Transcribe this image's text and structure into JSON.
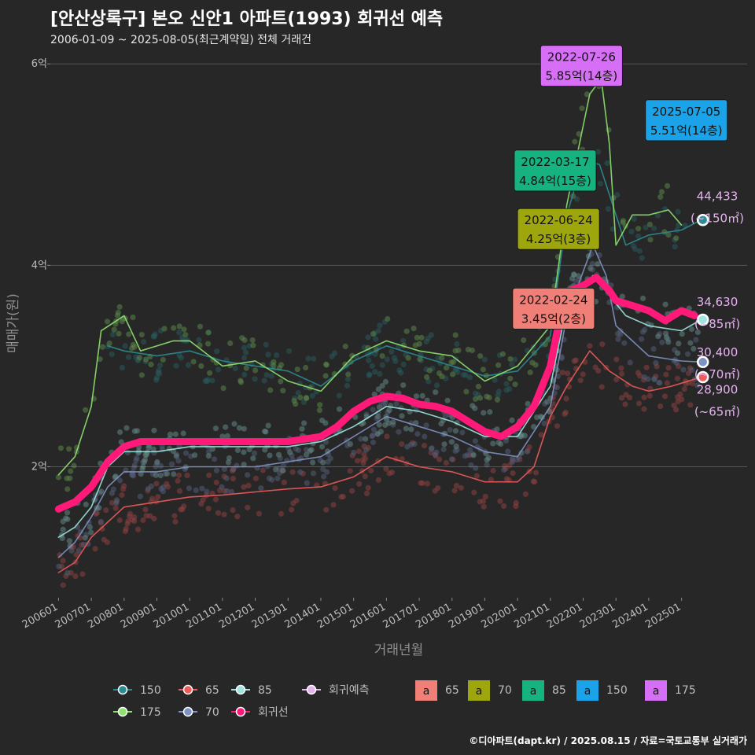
{
  "header": {
    "title": "[안산상록구] 본오 신안1 아파트(1993) 회귀선 예측",
    "subtitle": "2006-01-09 ~ 2025-08-05(최근계약일) 전체 거래건"
  },
  "footer": {
    "credit": "©디아파트(dapt.kr) / 2025.08.15 / 자료=국토교통부 실거래가"
  },
  "chart_data": {
    "type": "scatter",
    "xlabel": "거래년월",
    "ylabel": "매매가(원)",
    "x_ticks": [
      "200601",
      "200701",
      "200801",
      "200901",
      "201001",
      "201101",
      "201201",
      "201301",
      "201401",
      "201501",
      "201601",
      "201701",
      "201801",
      "201901",
      "202001",
      "202101",
      "202201",
      "202301",
      "202401",
      "202501"
    ],
    "y_ticks": [
      {
        "value": 2,
        "label": "2억"
      },
      {
        "value": 4,
        "label": "4억"
      },
      {
        "value": 6,
        "label": "6억"
      }
    ],
    "xlim": [
      2005.75,
      2027.0
    ],
    "ylim": [
      0.7,
      6.15
    ],
    "series": [
      {
        "name": "150",
        "color": "#2b8c92",
        "values": [
          [
            2007.5,
            3.2
          ],
          [
            2008,
            3.15
          ],
          [
            2009,
            3.1
          ],
          [
            2010,
            3.15
          ],
          [
            2011,
            3.05
          ],
          [
            2012,
            3.0
          ],
          [
            2013,
            2.95
          ],
          [
            2014,
            2.8
          ],
          [
            2015,
            3.05
          ],
          [
            2016,
            3.2
          ],
          [
            2017,
            3.1
          ],
          [
            2018,
            3.0
          ],
          [
            2019,
            2.9
          ],
          [
            2020,
            2.95
          ],
          [
            2021,
            3.3
          ],
          [
            2021.5,
            4.5
          ],
          [
            2022.0,
            5.05
          ],
          [
            2022.5,
            5.0
          ],
          [
            2022.9,
            4.6
          ],
          [
            2023.3,
            4.2
          ],
          [
            2024,
            4.3
          ],
          [
            2025,
            4.35
          ],
          [
            2025.6,
            4.45
          ]
        ]
      },
      {
        "name": "175",
        "color": "#8ee26e",
        "values": [
          [
            2006.0,
            1.92
          ],
          [
            2006.5,
            2.1
          ],
          [
            2007.0,
            2.6
          ],
          [
            2007.3,
            3.35
          ],
          [
            2008,
            3.5
          ],
          [
            2008.5,
            3.15
          ],
          [
            2009.5,
            3.25
          ],
          [
            2010,
            3.25
          ],
          [
            2011,
            3.0
          ],
          [
            2012,
            3.05
          ],
          [
            2013,
            2.85
          ],
          [
            2014,
            2.75
          ],
          [
            2015,
            3.1
          ],
          [
            2016,
            3.25
          ],
          [
            2017,
            3.15
          ],
          [
            2018,
            3.1
          ],
          [
            2019,
            2.85
          ],
          [
            2020,
            3.0
          ],
          [
            2021,
            3.4
          ],
          [
            2021.5,
            4.6
          ],
          [
            2022.2,
            5.7
          ],
          [
            2022.55,
            5.85
          ],
          [
            2022.8,
            5.2
          ],
          [
            2023.0,
            4.2
          ],
          [
            2023.5,
            4.5
          ],
          [
            2024.0,
            4.5
          ],
          [
            2024.6,
            4.55
          ],
          [
            2025.0,
            4.4
          ]
        ]
      },
      {
        "name": "65",
        "color": "#f05a5a",
        "values": [
          [
            2006.0,
            0.95
          ],
          [
            2006.5,
            1.05
          ],
          [
            2007.0,
            1.3
          ],
          [
            2007.5,
            1.45
          ],
          [
            2008,
            1.6
          ],
          [
            2009,
            1.65
          ],
          [
            2010,
            1.7
          ],
          [
            2011,
            1.72
          ],
          [
            2012,
            1.75
          ],
          [
            2013,
            1.78
          ],
          [
            2014,
            1.8
          ],
          [
            2015,
            1.9
          ],
          [
            2016,
            2.1
          ],
          [
            2017,
            2.0
          ],
          [
            2018,
            1.95
          ],
          [
            2019,
            1.85
          ],
          [
            2020,
            1.85
          ],
          [
            2020.5,
            2.0
          ],
          [
            2021,
            2.5
          ],
          [
            2021.5,
            2.8
          ],
          [
            2022.2,
            3.15
          ],
          [
            2022.8,
            2.95
          ],
          [
            2023.5,
            2.8
          ],
          [
            2024,
            2.75
          ],
          [
            2024.7,
            2.8
          ],
          [
            2025.5,
            2.88
          ]
        ]
      },
      {
        "name": "70",
        "color": "#7f92c4",
        "values": [
          [
            2006.0,
            1.1
          ],
          [
            2006.5,
            1.25
          ],
          [
            2007.0,
            1.5
          ],
          [
            2007.5,
            1.8
          ],
          [
            2008,
            1.95
          ],
          [
            2009,
            1.95
          ],
          [
            2010,
            2.0
          ],
          [
            2011,
            2.0
          ],
          [
            2012,
            2.0
          ],
          [
            2013,
            2.05
          ],
          [
            2014,
            2.1
          ],
          [
            2015,
            2.3
          ],
          [
            2016,
            2.5
          ],
          [
            2017,
            2.4
          ],
          [
            2018,
            2.3
          ],
          [
            2019,
            2.15
          ],
          [
            2020,
            2.1
          ],
          [
            2021,
            2.6
          ],
          [
            2021.5,
            3.5
          ],
          [
            2022.3,
            4.2
          ],
          [
            2022.7,
            3.9
          ],
          [
            2023.0,
            3.4
          ],
          [
            2023.5,
            3.25
          ],
          [
            2024,
            3.1
          ],
          [
            2025,
            3.05
          ],
          [
            2025.6,
            3.04
          ]
        ]
      },
      {
        "name": "85",
        "color": "#9fe6e1",
        "values": [
          [
            2006.0,
            1.3
          ],
          [
            2006.5,
            1.4
          ],
          [
            2007.0,
            1.6
          ],
          [
            2007.5,
            2.0
          ],
          [
            2008,
            2.15
          ],
          [
            2009,
            2.15
          ],
          [
            2010,
            2.2
          ],
          [
            2011,
            2.2
          ],
          [
            2012,
            2.2
          ],
          [
            2013,
            2.2
          ],
          [
            2014,
            2.25
          ],
          [
            2015,
            2.4
          ],
          [
            2016,
            2.6
          ],
          [
            2017,
            2.55
          ],
          [
            2018,
            2.45
          ],
          [
            2019,
            2.3
          ],
          [
            2020,
            2.3
          ],
          [
            2021,
            2.8
          ],
          [
            2021.5,
            3.6
          ],
          [
            2022.3,
            3.9
          ],
          [
            2022.8,
            3.7
          ],
          [
            2023.3,
            3.5
          ],
          [
            2024,
            3.4
          ],
          [
            2025,
            3.35
          ],
          [
            2025.6,
            3.46
          ]
        ]
      },
      {
        "name": "회귀선",
        "color": "#ff1a7a",
        "values": [
          [
            2006.0,
            1.58
          ],
          [
            2006.5,
            1.65
          ],
          [
            2007.0,
            1.8
          ],
          [
            2007.5,
            2.05
          ],
          [
            2008,
            2.2
          ],
          [
            2008.5,
            2.25
          ],
          [
            2009,
            2.25
          ],
          [
            2010,
            2.25
          ],
          [
            2011,
            2.25
          ],
          [
            2012,
            2.25
          ],
          [
            2013,
            2.25
          ],
          [
            2014,
            2.3
          ],
          [
            2014.5,
            2.4
          ],
          [
            2015,
            2.55
          ],
          [
            2015.5,
            2.65
          ],
          [
            2016,
            2.7
          ],
          [
            2016.5,
            2.68
          ],
          [
            2017,
            2.62
          ],
          [
            2017.5,
            2.6
          ],
          [
            2018,
            2.55
          ],
          [
            2018.5,
            2.45
          ],
          [
            2019,
            2.35
          ],
          [
            2019.5,
            2.3
          ],
          [
            2020,
            2.4
          ],
          [
            2020.5,
            2.6
          ],
          [
            2021,
            3.0
          ],
          [
            2021.3,
            3.5
          ],
          [
            2021.6,
            3.75
          ],
          [
            2022,
            3.8
          ],
          [
            2022.4,
            3.88
          ],
          [
            2022.8,
            3.75
          ],
          [
            2023.0,
            3.65
          ],
          [
            2023.5,
            3.6
          ],
          [
            2024,
            3.55
          ],
          [
            2024.5,
            3.45
          ],
          [
            2025,
            3.55
          ],
          [
            2025.4,
            3.5
          ]
        ]
      }
    ],
    "callouts": [
      {
        "date": "2022-07-26",
        "price": "5.85억(14층)",
        "color": "#d66ff5",
        "tx": 2020.7,
        "ty": 5.84
      },
      {
        "date": "2025-07-05",
        "price": "5.51억(14층)",
        "color": "#1aa3e8",
        "tx": 2023.9,
        "ty": 5.3
      },
      {
        "date": "2022-03-17",
        "price": "4.84억(15층)",
        "color": "#16b380",
        "tx": 2019.9,
        "ty": 4.8
      },
      {
        "date": "2022-06-24",
        "price": "4.25억(3층)",
        "color": "#9ea60e",
        "tx": 2020.0,
        "ty": 4.22
      },
      {
        "date": "2022-02-24",
        "price": "3.45억(2층)",
        "color": "#f07f78",
        "tx": 2019.85,
        "ty": 3.43
      }
    ],
    "end_labels": [
      {
        "value": "44,433",
        "area": "(~150㎡)",
        "y": 4.6
      },
      {
        "value": "34,630",
        "area": "(~85㎡)",
        "y": 3.55
      },
      {
        "value": "30,400",
        "area": "(~70㎡)",
        "y": 3.05
      },
      {
        "value": "28,900",
        "area": "(~65㎡)",
        "y": 2.68
      }
    ],
    "end_points": [
      {
        "series": "150",
        "color": "#2b8c92",
        "y": 4.45
      },
      {
        "series": "85",
        "color": "#9fe6e1",
        "y": 3.46
      },
      {
        "series": "70",
        "color": "#7f92c4",
        "y": 3.04
      },
      {
        "series": "65",
        "color": "#f05a5a",
        "y": 2.89
      }
    ],
    "legend": {
      "placement": "bottom",
      "items": [
        {
          "label": "150",
          "color": "#2b8c92",
          "kind": "line"
        },
        {
          "label": "65",
          "color": "#f05a5a",
          "kind": "line"
        },
        {
          "label": "85",
          "color": "#9fe6e1",
          "kind": "line"
        },
        {
          "label": "회귀예측",
          "color": "#e6b3f0",
          "kind": "line"
        },
        {
          "label": "175",
          "color": "#8ee26e",
          "kind": "line"
        },
        {
          "label": "70",
          "color": "#7f92c4",
          "kind": "line"
        },
        {
          "label": "회귀선",
          "color": "#ff1a7a",
          "kind": "line"
        },
        {
          "label": "65",
          "color": "#f07f78",
          "kind": "box"
        },
        {
          "label": "70",
          "color": "#9ea60e",
          "kind": "box"
        },
        {
          "label": "85",
          "color": "#16b380",
          "kind": "box"
        },
        {
          "label": "150",
          "color": "#1aa3e8",
          "kind": "box"
        },
        {
          "label": "175",
          "color": "#d66ff5",
          "kind": "box"
        }
      ],
      "box_glyph": "a"
    },
    "grid": true
  }
}
